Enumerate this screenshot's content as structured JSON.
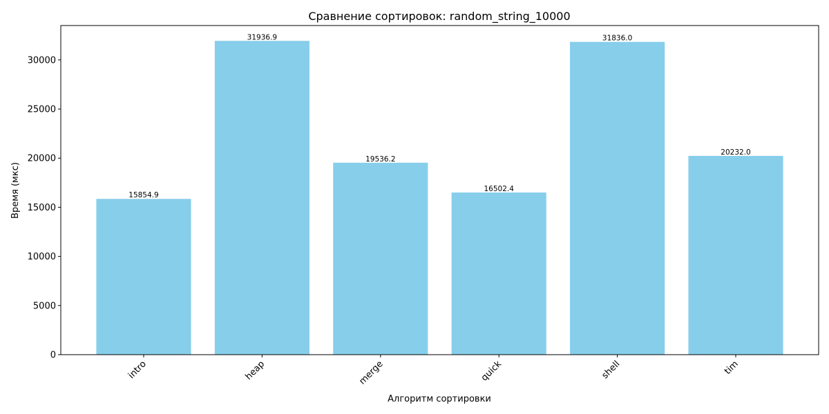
{
  "chart_data": {
    "type": "bar",
    "title": "Сравнение сортировок: random_string_10000",
    "xlabel": "Алгоритм сортировки",
    "ylabel": "Время (мкс)",
    "categories": [
      "intro",
      "heap",
      "merge",
      "quick",
      "shell",
      "tim"
    ],
    "values": [
      15854.9,
      31936.9,
      19536.2,
      16502.4,
      31836.0,
      20232.0
    ],
    "value_labels": [
      "15854.9",
      "31936.9",
      "19536.2",
      "16502.4",
      "31836.0",
      "20232.0"
    ],
    "ylim": [
      0,
      33500
    ],
    "yticks": [
      0,
      5000,
      10000,
      15000,
      20000,
      25000,
      30000
    ],
    "ytick_labels": [
      "0",
      "5000",
      "10000",
      "15000",
      "20000",
      "25000",
      "30000"
    ],
    "bar_color": "#87ceeb",
    "grid": false,
    "legend": "none"
  }
}
